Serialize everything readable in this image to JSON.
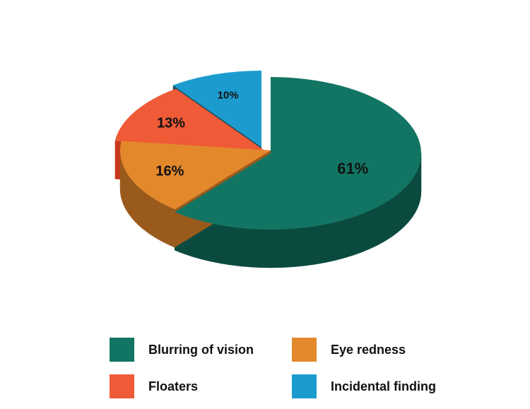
{
  "chart_data": {
    "type": "pie",
    "style": "3d-exploded",
    "series": [
      {
        "name": "Blurring of vision",
        "value": 61,
        "label": "61%",
        "color": "#127563",
        "side_color": "#0b4a3f"
      },
      {
        "name": "Eye redness",
        "value": 16,
        "label": "16%",
        "color": "#e4882c",
        "side_color": "#9a5a1c"
      },
      {
        "name": "Floaters",
        "value": 13,
        "label": "13%",
        "color": "#ef5a37",
        "side_color": "#c8381f"
      },
      {
        "name": "Incidental finding",
        "value": 10,
        "label": "10%",
        "color": "#1c9cce",
        "side_color": "#0f4f66"
      }
    ],
    "legend_position": "bottom"
  },
  "legend": {
    "items": [
      {
        "label": "Blurring of vision",
        "color": "#127563"
      },
      {
        "label": "Eye redness",
        "color": "#e4882c"
      },
      {
        "label": "Floaters",
        "color": "#ef5a37"
      },
      {
        "label": "Incidental finding",
        "color": "#1c9cce"
      }
    ]
  }
}
